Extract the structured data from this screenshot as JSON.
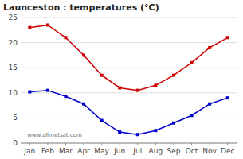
{
  "chart_data": {
    "type": "line",
    "title": "Launceston : temperatures (°C)",
    "categories": [
      "Jan",
      "Feb",
      "Mar",
      "Apr",
      "May",
      "Jun",
      "Jul",
      "Aug",
      "Sep",
      "Oct",
      "Nov",
      "Dec"
    ],
    "series": [
      {
        "color": "#cc0000",
        "marker": "square",
        "values": [
          23.0,
          23.5,
          21.0,
          17.5,
          13.5,
          11.0,
          10.5,
          11.5,
          13.5,
          16.0,
          19.0,
          21.0
        ]
      },
      {
        "color": "#0000cc",
        "marker": "square",
        "values": [
          10.2,
          10.5,
          9.3,
          7.8,
          4.5,
          2.2,
          1.7,
          2.5,
          4.0,
          5.5,
          7.8,
          9.0
        ]
      }
    ],
    "ylim": [
      0,
      25
    ],
    "yticks": [
      0,
      5,
      10,
      15,
      20,
      25
    ],
    "grid": true,
    "annotations": [
      "www.allmetsat.com"
    ]
  }
}
